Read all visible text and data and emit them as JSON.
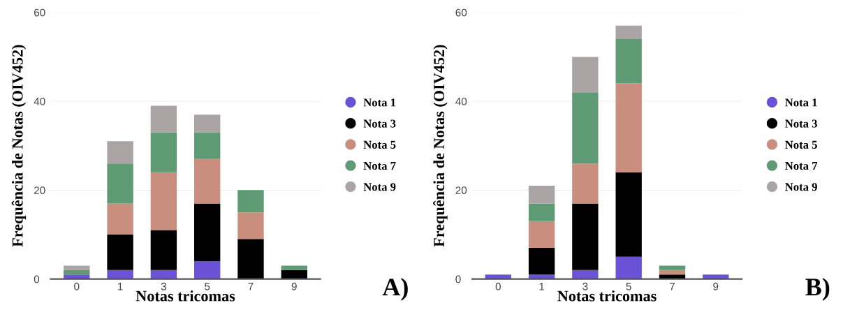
{
  "chart_data": [
    {
      "type": "bar",
      "stacked": true,
      "xlabel": "Notas tricomas",
      "ylabel": "Frequência de Notas (OIV452)",
      "categories": [
        "0",
        "1",
        "3",
        "5",
        "7",
        "9"
      ],
      "ylim": [
        0,
        60
      ],
      "yticks": [
        0,
        20,
        40,
        60
      ],
      "grid": "y",
      "legend": "right",
      "annotations": [
        "A)"
      ],
      "series": [
        {
          "name": "Nota 1",
          "color": "#6a51d6",
          "values": [
            1,
            2,
            2,
            4,
            0,
            0
          ]
        },
        {
          "name": "Nota 3",
          "color": "#000000",
          "values": [
            0,
            8,
            9,
            13,
            9,
            2
          ]
        },
        {
          "name": "Nota 5",
          "color": "#c98e7e",
          "values": [
            0,
            7,
            13,
            10,
            6,
            0
          ]
        },
        {
          "name": "Nota 7",
          "color": "#5e9a74",
          "values": [
            1,
            9,
            9,
            6,
            5,
            1
          ]
        },
        {
          "name": "Nota 9",
          "color": "#aaa4a4",
          "values": [
            1,
            5,
            6,
            4,
            0,
            0
          ]
        }
      ]
    },
    {
      "type": "bar",
      "stacked": true,
      "xlabel": "Notas tricomas",
      "ylabel": "Frequência de Notas (OIV452)",
      "categories": [
        "0",
        "1",
        "3",
        "5",
        "7",
        "9"
      ],
      "ylim": [
        0,
        60
      ],
      "yticks": [
        0,
        20,
        40,
        60
      ],
      "grid": "y",
      "legend": "right",
      "annotations": [
        "B)"
      ],
      "series": [
        {
          "name": "Nota 1",
          "color": "#6a51d6",
          "values": [
            1,
            1,
            2,
            5,
            0,
            1
          ]
        },
        {
          "name": "Nota 3",
          "color": "#000000",
          "values": [
            0,
            6,
            15,
            19,
            1,
            0
          ]
        },
        {
          "name": "Nota 5",
          "color": "#c98e7e",
          "values": [
            0,
            6,
            9,
            20,
            1,
            0
          ]
        },
        {
          "name": "Nota 7",
          "color": "#5e9a74",
          "values": [
            0,
            4,
            16,
            10,
            1,
            0
          ]
        },
        {
          "name": "Nota 9",
          "color": "#aaa4a4",
          "values": [
            0,
            4,
            8,
            3,
            0,
            0
          ]
        }
      ]
    }
  ]
}
